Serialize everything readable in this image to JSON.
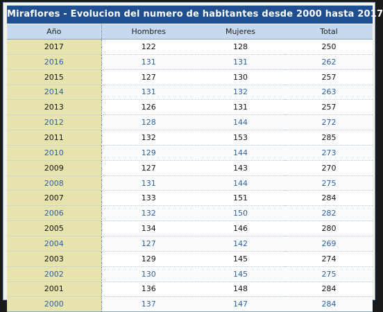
{
  "chart_data": {
    "type": "table",
    "title": "Miraflores - Evolucion del numero de habitantes desde 2000 hasta 2017",
    "columns": [
      "Año",
      "Hombres",
      "Mujeres",
      "Total"
    ],
    "rows": [
      [
        "2017",
        "122",
        "128",
        "250"
      ],
      [
        "2016",
        "131",
        "131",
        "262"
      ],
      [
        "2015",
        "127",
        "130",
        "257"
      ],
      [
        "2014",
        "131",
        "132",
        "263"
      ],
      [
        "2013",
        "126",
        "131",
        "257"
      ],
      [
        "2012",
        "128",
        "144",
        "272"
      ],
      [
        "2011",
        "132",
        "153",
        "285"
      ],
      [
        "2010",
        "129",
        "144",
        "273"
      ],
      [
        "2009",
        "127",
        "143",
        "270"
      ],
      [
        "2008",
        "131",
        "144",
        "275"
      ],
      [
        "2007",
        "133",
        "151",
        "284"
      ],
      [
        "2006",
        "132",
        "150",
        "282"
      ],
      [
        "2005",
        "134",
        "146",
        "280"
      ],
      [
        "2004",
        "127",
        "142",
        "269"
      ],
      [
        "2003",
        "129",
        "145",
        "274"
      ],
      [
        "2002",
        "130",
        "145",
        "275"
      ],
      [
        "2001",
        "136",
        "148",
        "284"
      ],
      [
        "2000",
        "137",
        "147",
        "284"
      ]
    ]
  },
  "colors": {
    "title_bg": "#1f4f8f",
    "header_bg": "#c7d9ee",
    "year_col_bg": "#e6e3ad",
    "alt_row_text": "#2e5fa0"
  }
}
